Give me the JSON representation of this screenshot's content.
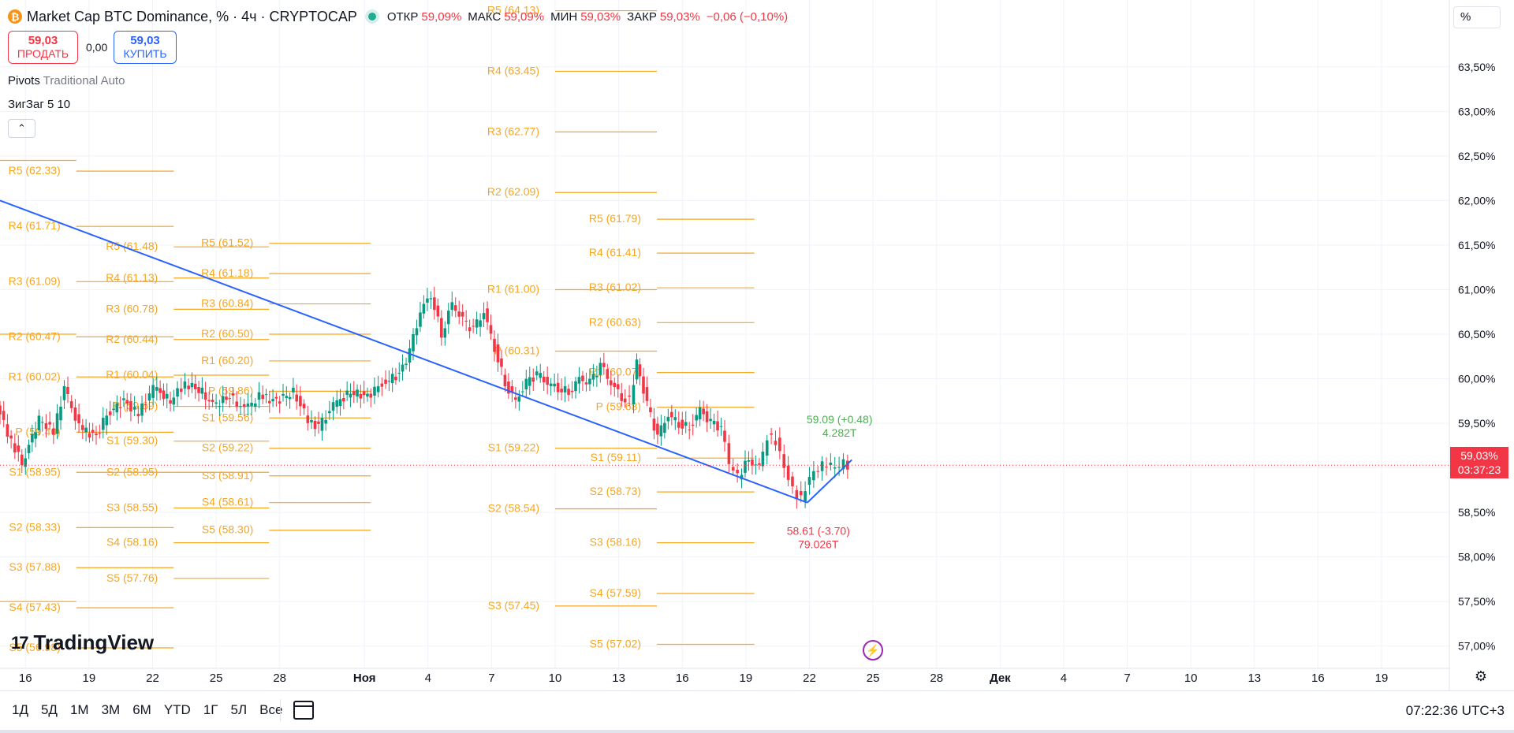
{
  "header": {
    "logo_letter": "₿",
    "title": "Market Cap BTC Dominance, % · 4ч · CRYPTOCAP",
    "ohlc": [
      {
        "key": "ОТКР",
        "value": "59,09%"
      },
      {
        "key": "МАКС",
        "value": "59,09%"
      },
      {
        "key": "МИН",
        "value": "59,03%"
      },
      {
        "key": "ЗАКР",
        "value": "59,03%"
      }
    ],
    "change": "−0,06 (−0,10%)"
  },
  "trade": {
    "sell_price": "59,03",
    "sell_label": "ПРОДАТЬ",
    "spread": "0,00",
    "buy_price": "59,03",
    "buy_label": "КУПИТЬ"
  },
  "indicators": {
    "pivots_name": "Pivots",
    "pivots_params": "Traditional Auto",
    "zigzag": "ЗигЗаг 5 10"
  },
  "brand": "TradingView",
  "unit_selector": "%",
  "last_price": {
    "value": "59,03%",
    "countdown": "03:37:23"
  },
  "bottom_bar": {
    "ranges": [
      "1Д",
      "5Д",
      "1М",
      "3М",
      "6М",
      "YTD",
      "1Г",
      "5Л",
      "Все"
    ],
    "clock": "07:22:36 UTC+3"
  },
  "colors": {
    "up": "#089981",
    "down": "#f23645",
    "pivot": "#f5a623",
    "trend": "#2962ff",
    "zigzag_up": "#2962ff"
  },
  "chart_data": {
    "type": "candlestick",
    "title": "Market Cap BTC Dominance, % · 4ч · CRYPTOCAP",
    "ylim": [
      56.75,
      64.25
    ],
    "y_ticks": [
      "57,00%",
      "57,50%",
      "58,00%",
      "58,50%",
      "59,00%",
      "59,50%",
      "60,00%",
      "60,50%",
      "61,00%",
      "61,50%",
      "62,00%",
      "62,50%",
      "63,00%",
      "63,50%"
    ],
    "y_tick_values": [
      57.0,
      57.5,
      58.0,
      58.5,
      59.0,
      59.5,
      60.0,
      60.5,
      61.0,
      61.5,
      62.0,
      62.5,
      63.0,
      63.5
    ],
    "x_ticks": [
      "16",
      "19",
      "22",
      "25",
      "28",
      "Ноя",
      "4",
      "7",
      "10",
      "13",
      "16",
      "19",
      "22",
      "25",
      "28",
      "Дек",
      "4",
      "7",
      "10",
      "13",
      "16",
      "19"
    ],
    "x_tick_days": [
      -16,
      -13,
      -10,
      -7,
      -4,
      0,
      3,
      6,
      9,
      12,
      15,
      18,
      21,
      24,
      27,
      30,
      33,
      36,
      39,
      42,
      45,
      48
    ],
    "x_range_days": [
      -17.2,
      51.2
    ],
    "close_path": [
      [
        -17.2,
        59.7
      ],
      [
        -16.5,
        59.3
      ],
      [
        -16.0,
        59.05
      ],
      [
        -15.2,
        59.55
      ],
      [
        -14.5,
        59.4
      ],
      [
        -14.0,
        59.9
      ],
      [
        -13.3,
        59.45
      ],
      [
        -12.5,
        59.35
      ],
      [
        -12.0,
        59.6
      ],
      [
        -11.2,
        59.75
      ],
      [
        -10.5,
        59.6
      ],
      [
        -9.8,
        59.9
      ],
      [
        -9.0,
        59.75
      ],
      [
        -8.3,
        59.95
      ],
      [
        -7.5,
        59.85
      ],
      [
        -7.0,
        59.7
      ],
      [
        -6.2,
        59.8
      ],
      [
        -5.5,
        59.65
      ],
      [
        -4.8,
        59.8
      ],
      [
        -4.0,
        59.75
      ],
      [
        -3.2,
        59.85
      ],
      [
        -2.5,
        59.55
      ],
      [
        -2.0,
        59.45
      ],
      [
        -1.3,
        59.7
      ],
      [
        -0.5,
        59.85
      ],
      [
        0.3,
        59.8
      ],
      [
        1.0,
        59.95
      ],
      [
        1.8,
        60.05
      ],
      [
        2.3,
        60.3
      ],
      [
        2.8,
        60.75
      ],
      [
        3.3,
        60.95
      ],
      [
        3.8,
        60.5
      ],
      [
        4.3,
        60.85
      ],
      [
        4.8,
        60.65
      ],
      [
        5.3,
        60.55
      ],
      [
        5.8,
        60.75
      ],
      [
        6.3,
        60.35
      ],
      [
        6.8,
        59.95
      ],
      [
        7.3,
        59.75
      ],
      [
        7.8,
        59.95
      ],
      [
        8.3,
        60.05
      ],
      [
        8.8,
        59.95
      ],
      [
        9.3,
        59.9
      ],
      [
        9.8,
        59.85
      ],
      [
        10.3,
        60.0
      ],
      [
        10.8,
        59.95
      ],
      [
        11.3,
        60.15
      ],
      [
        11.8,
        59.95
      ],
      [
        12.3,
        59.8
      ],
      [
        12.7,
        59.75
      ],
      [
        13.0,
        60.2
      ],
      [
        13.5,
        59.7
      ],
      [
        14.0,
        59.35
      ],
      [
        14.5,
        59.6
      ],
      [
        15.0,
        59.5
      ],
      [
        15.5,
        59.45
      ],
      [
        16.0,
        59.65
      ],
      [
        16.5,
        59.5
      ],
      [
        17.0,
        59.45
      ],
      [
        17.4,
        59.05
      ],
      [
        17.8,
        58.9
      ],
      [
        18.3,
        59.1
      ],
      [
        18.8,
        59.0
      ],
      [
        19.2,
        59.35
      ],
      [
        19.6,
        59.3
      ],
      [
        20.0,
        59.0
      ],
      [
        20.4,
        58.75
      ],
      [
        20.8,
        58.65
      ],
      [
        21.2,
        58.9
      ],
      [
        21.6,
        59.0
      ],
      [
        22.0,
        59.05
      ],
      [
        22.4,
        59.0
      ],
      [
        22.8,
        59.05
      ],
      [
        23.0,
        59.03
      ]
    ],
    "trend_line": [
      [
        -17.2,
        62.0
      ],
      [
        20.9,
        58.61
      ]
    ],
    "zigzag": [
      [
        20.9,
        58.61
      ],
      [
        23.0,
        59.09
      ]
    ],
    "zigzag_labels": [
      {
        "text": "59.09 (+0.48)",
        "sub": "4.282T",
        "day": 21.9,
        "value": 59.5,
        "color": "up"
      },
      {
        "text": "58.61 (-3.70)",
        "sub": "79.026T",
        "day": 20.9,
        "value": 58.25,
        "color": "down"
      }
    ],
    "last_value": 59.03,
    "pivots": [
      {
        "start": -17.2,
        "end": -13.6,
        "levels": [
          [
            "R5",
            null
          ],
          [
            "R4",
            null
          ],
          [
            "R3",
            null
          ],
          [
            "R2",
            null
          ],
          [
            "R1",
            null
          ],
          [
            "P",
            null
          ],
          [
            "S1",
            null
          ],
          [
            "S2",
            null
          ],
          [
            "S3",
            null
          ],
          [
            "S4",
            null
          ],
          [
            "S5",
            null
          ]
        ],
        "values": [
          62.45,
          null,
          null,
          60.5,
          null,
          null,
          null,
          null,
          null,
          57.5,
          null
        ]
      },
      {
        "start": -13.6,
        "end": -9.0,
        "labels": [
          "R5 (62.33)",
          "R4 (61.71)",
          "R3 (61.09)",
          "R2 (60.47)",
          "R1 (60.02)",
          "P (59.40)",
          "S1 (58.95)",
          "S2 (58.33)",
          "S3 (57.88)",
          "S4 (57.43)",
          "S5 (56.98)"
        ],
        "values": [
          62.33,
          61.71,
          61.09,
          60.47,
          60.02,
          59.4,
          58.95,
          58.33,
          57.88,
          57.43,
          56.98
        ]
      },
      {
        "start": -9.0,
        "end": -4.5,
        "labels": [
          "R5 (61.48)",
          "R4 (61.13)",
          "R3 (60.78)",
          "R2 (60.44)",
          "R1 (60.04)",
          "P (59.69)",
          "S1 (59.30)",
          "S2 (58.95)",
          "S3 (58.55)",
          "S4 (58.16)",
          "S5 (57.76)"
        ],
        "values": [
          61.48,
          61.13,
          60.78,
          60.44,
          60.04,
          59.69,
          59.3,
          58.95,
          58.55,
          58.16,
          57.76
        ]
      },
      {
        "start": -4.5,
        "end": 0.3,
        "labels": [
          "R5 (61.52)",
          "R4 (61.18)",
          "R3 (60.84)",
          "R2 (60.50)",
          "R1 (60.20)",
          "P (59.86)",
          "S1 (59.56)",
          "S2 (59.22)",
          "S3 (58.91)",
          "S4 (58.61)",
          "S5 (58.30)"
        ],
        "values": [
          61.52,
          61.18,
          60.84,
          60.5,
          60.2,
          59.86,
          59.56,
          59.22,
          58.91,
          58.61,
          58.3
        ]
      },
      {
        "start": 9.0,
        "end": 13.8,
        "labels": [
          "R5 (64.13)",
          "R4 (63.45)",
          "R3 (62.77)",
          "R2 (62.09)",
          "R1 (61.00)",
          "P (60.31)",
          "S1 (59.22)",
          "S2 (58.54)",
          "S3 (57.45)"
        ],
        "values": [
          64.13,
          63.45,
          62.77,
          62.09,
          61.0,
          60.31,
          59.22,
          58.54,
          57.45
        ]
      },
      {
        "start": 13.8,
        "end": 18.4,
        "labels": [
          "R5 (61.79)",
          "R4 (61.41)",
          "R3 (61.02)",
          "R2 (60.63)",
          "R1 (60.07)",
          "P (59.68)",
          "S1 (59.11)",
          "S2 (58.73)",
          "S3 (58.16)",
          "S4 (57.59)",
          "S5 (57.02)"
        ],
        "values": [
          61.79,
          61.41,
          61.02,
          60.63,
          60.07,
          59.68,
          59.11,
          58.73,
          58.16,
          57.59,
          57.02
        ]
      }
    ]
  }
}
